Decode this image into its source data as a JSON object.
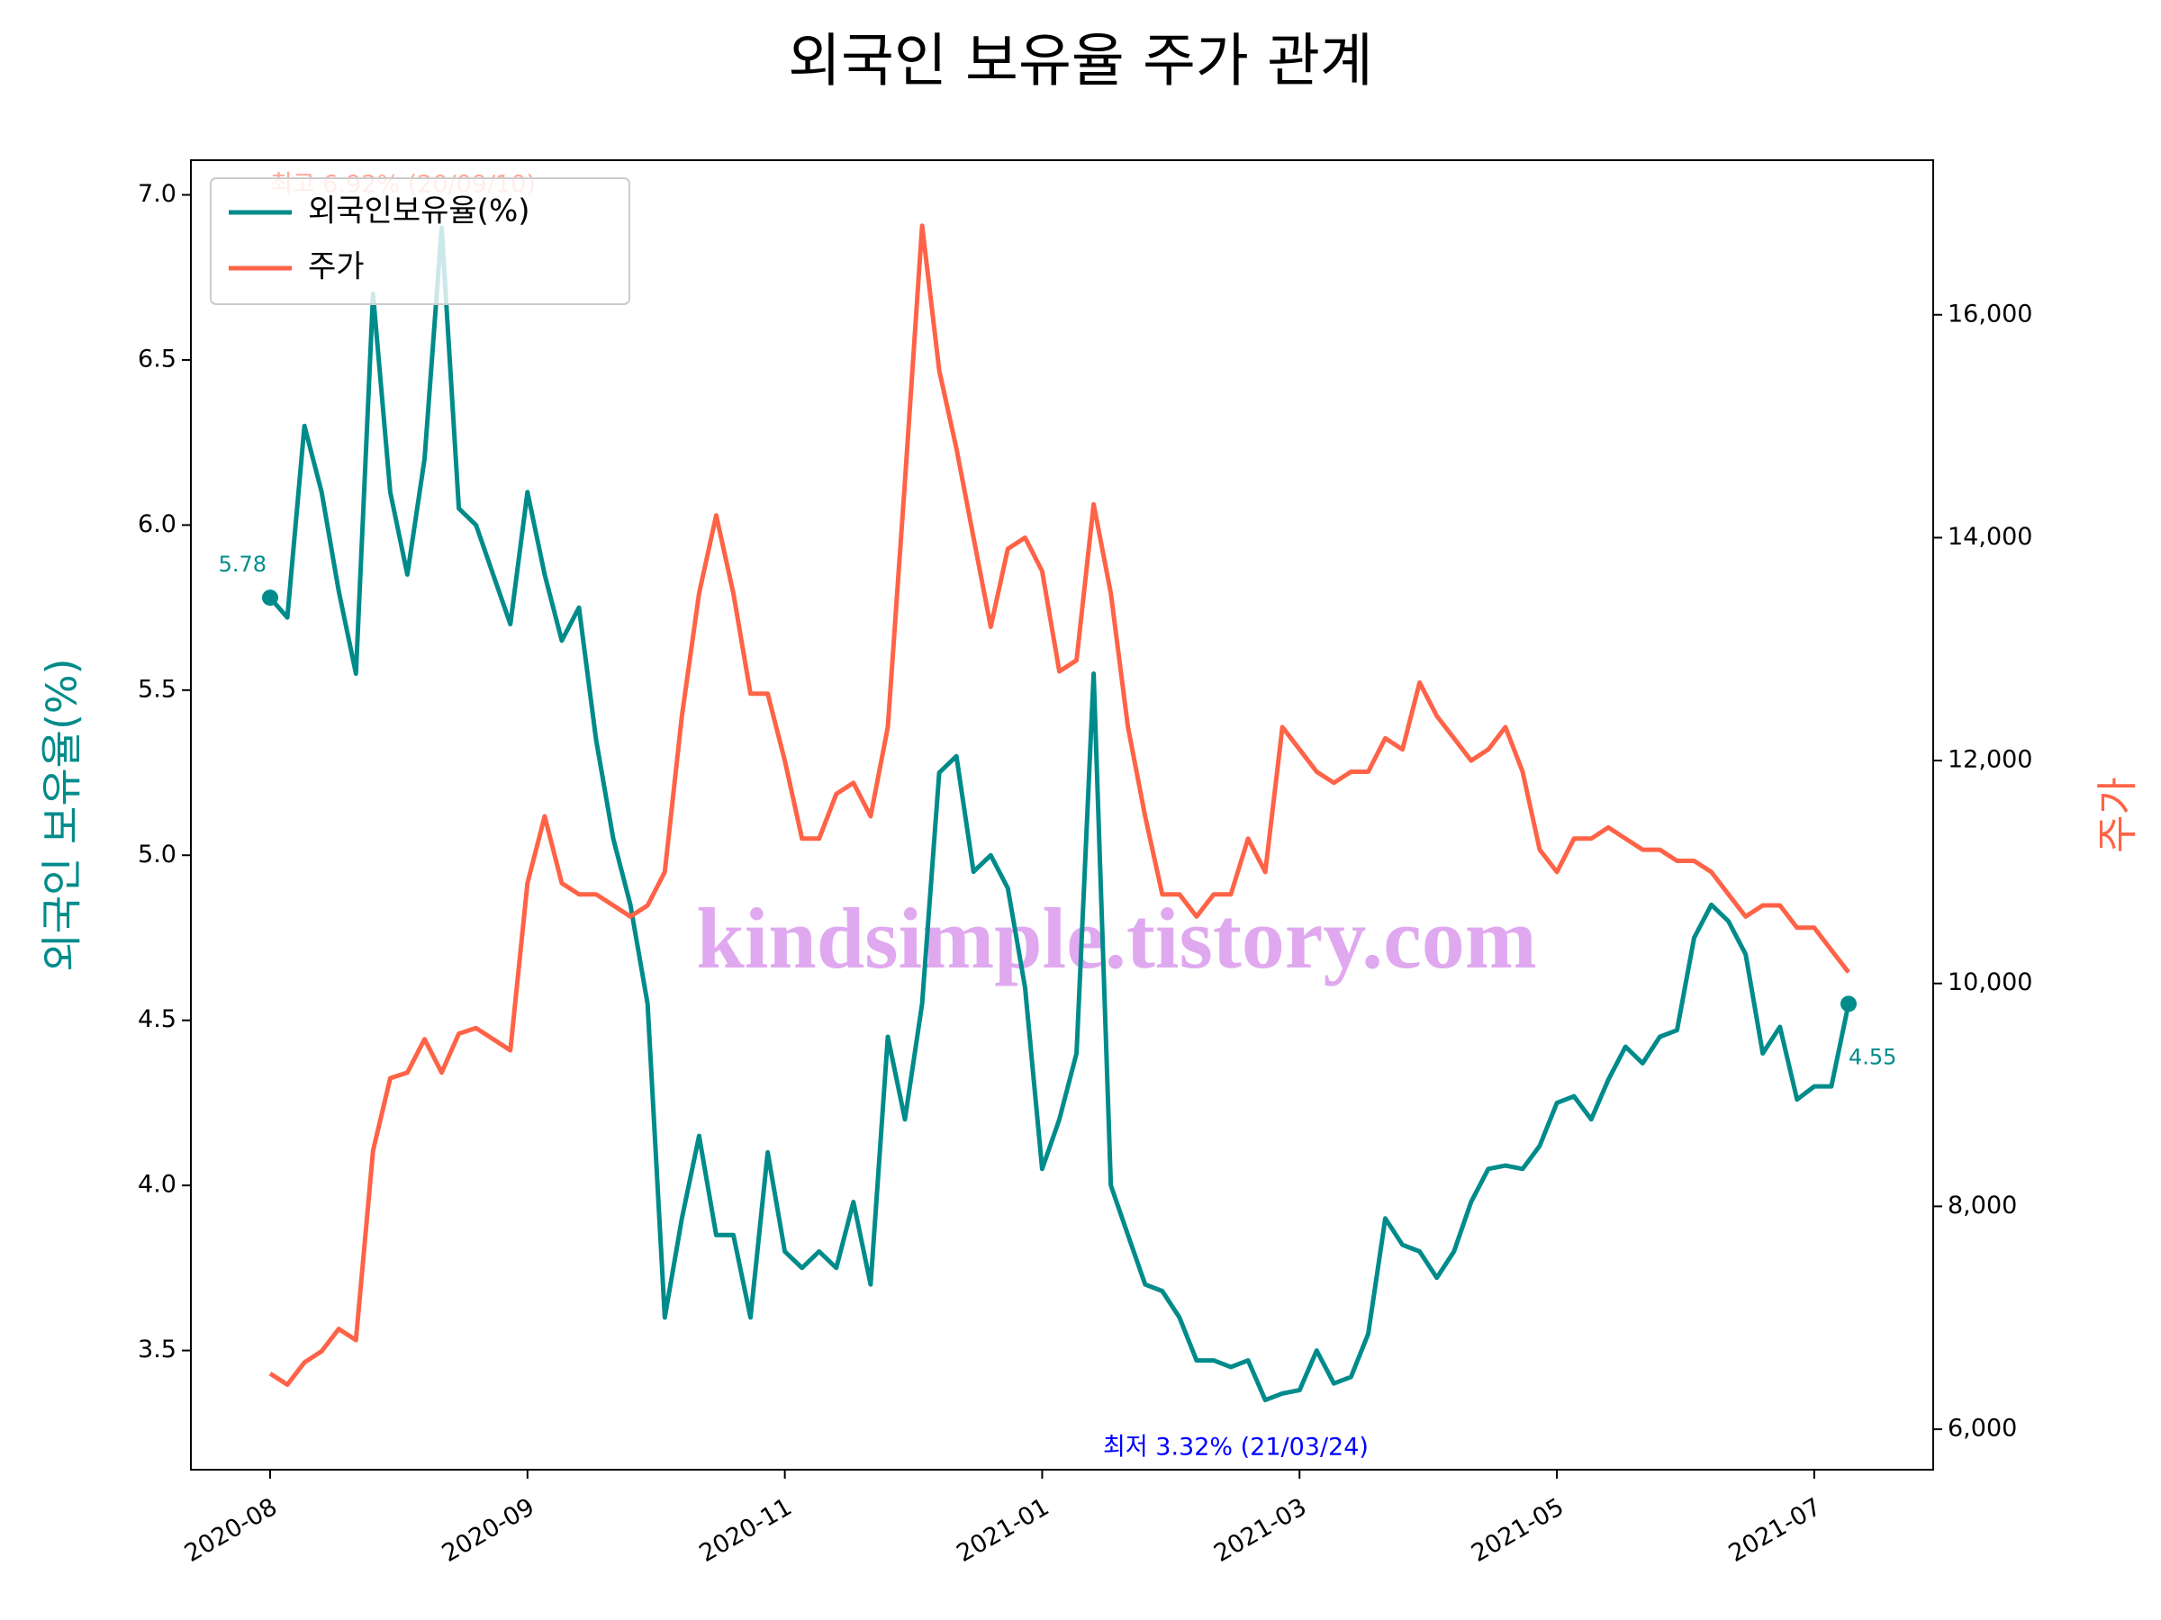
{
  "chart_data": {
    "type": "line",
    "title": "외국인 보유율 주가 관계",
    "ylabel": "외국인 보유율(%)",
    "y2label": "주가",
    "watermark": "kindsimple.tistory.com",
    "categories": [
      "2020-08",
      null,
      null,
      null,
      null,
      null,
      null,
      null,
      null,
      null,
      null,
      null,
      null,
      null,
      null,
      "2020-09",
      null,
      null,
      null,
      null,
      null,
      null,
      null,
      null,
      null,
      null,
      null,
      null,
      null,
      null,
      "2020-11",
      null,
      null,
      null,
      null,
      null,
      null,
      null,
      null,
      null,
      null,
      null,
      null,
      null,
      null,
      "2021-01",
      null,
      null,
      null,
      null,
      null,
      null,
      null,
      null,
      null,
      null,
      null,
      null,
      null,
      null,
      "2021-03",
      null,
      null,
      null,
      null,
      null,
      null,
      null,
      null,
      null,
      null,
      null,
      null,
      null,
      null,
      "2021-05",
      null,
      null,
      null,
      null,
      null,
      null,
      null,
      null,
      null,
      null,
      null,
      null,
      null,
      null,
      "2021-07",
      null,
      null
    ],
    "series": [
      {
        "name": "외국인보유율(%)",
        "color": "#008b8b",
        "values": [
          5.78,
          5.72,
          6.3,
          6.1,
          5.8,
          5.55,
          6.7,
          6.1,
          5.85,
          6.2,
          6.9,
          6.05,
          6.0,
          5.85,
          5.7,
          6.1,
          5.85,
          5.65,
          5.75,
          5.35,
          5.05,
          4.85,
          4.55,
          3.6,
          3.9,
          4.15,
          3.85,
          3.85,
          3.6,
          4.1,
          3.8,
          3.75,
          3.8,
          3.75,
          3.95,
          3.7,
          4.45,
          4.2,
          4.55,
          5.25,
          5.3,
          4.95,
          5.0,
          4.9,
          4.6,
          4.05,
          4.2,
          4.4,
          5.55,
          4.0,
          3.85,
          3.7,
          3.68,
          3.6,
          3.47,
          3.47,
          3.45,
          3.47,
          3.35,
          3.37,
          3.38,
          3.5,
          3.4,
          3.42,
          3.55,
          3.9,
          3.82,
          3.8,
          3.72,
          3.8,
          3.95,
          4.05,
          4.06,
          4.05,
          4.12,
          4.25,
          4.27,
          4.2,
          4.32,
          4.42,
          4.37,
          4.45,
          4.47,
          4.75,
          4.85,
          4.8,
          4.7,
          4.4,
          4.48,
          4.26,
          4.3,
          4.3,
          4.55
        ]
      },
      {
        "name": "주가",
        "color": "#ff6347",
        "axis": "y2",
        "values": [
          6500,
          6400,
          6600,
          6700,
          6900,
          6800,
          8500,
          9150,
          9200,
          9500,
          9200,
          9550,
          9600,
          9500,
          9400,
          10900,
          11500,
          10900,
          10800,
          10800,
          10700,
          10600,
          10700,
          11000,
          12400,
          13500,
          14200,
          13500,
          12600,
          12600,
          12000,
          11300,
          11300,
          11700,
          11800,
          11500,
          12300,
          14500,
          16800,
          15500,
          14800,
          14000,
          13200,
          13900,
          14000,
          13700,
          12800,
          12900,
          14300,
          13500,
          12300,
          11500,
          10800,
          10800,
          10600,
          10800,
          10800,
          11300,
          11000,
          12300,
          12100,
          11900,
          11800,
          11900,
          11900,
          12200,
          12100,
          12700,
          12400,
          12200,
          12000,
          12100,
          12300,
          11900,
          11200,
          11000,
          11300,
          11300,
          11400,
          11300,
          11200,
          11200,
          11100,
          11100,
          11000,
          10800,
          10600,
          10700,
          10700,
          10500,
          10500,
          10300,
          10100
        ]
      }
    ],
    "ylim": [
      3.139,
      7.105
    ],
    "yticks": [
      3.5,
      {
        "value": 4,
        "label": "4.0"
      },
      4.5,
      {
        "value": 5,
        "label": "5.0"
      },
      5.5,
      {
        "value": 6,
        "label": "6.0"
      },
      6.5,
      {
        "value": 7,
        "label": "7.0"
      }
    ],
    "y2lim": [
      5637,
      17387
    ],
    "y2ticks": [
      {
        "value": 6000,
        "label": "6,000"
      },
      {
        "value": 8000,
        "label": "8,000"
      },
      {
        "value": 10000,
        "label": "10,000"
      },
      {
        "value": 12000,
        "label": "12,000"
      },
      {
        "value": 14000,
        "label": "14,000"
      },
      {
        "value": 16000,
        "label": "16,000"
      }
    ],
    "annotations": [
      {
        "text": "5.78",
        "color": "#008b8b"
      },
      {
        "text": "4.55",
        "color": "#008b8b"
      },
      {
        "text": "최고 6.92% (20/09/10)",
        "color": "#ff6347"
      },
      {
        "text": "최저 3.32% (21/03/24)",
        "color": "#0000ff"
      }
    ],
    "legend": "upper left",
    "grid": false
  }
}
